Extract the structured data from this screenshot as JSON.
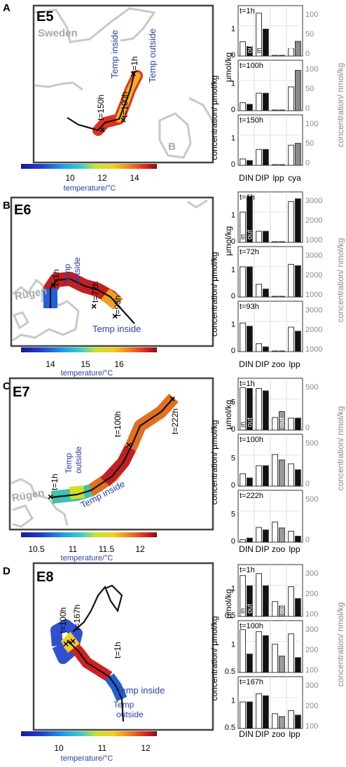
{
  "figure": {
    "panels": [
      {
        "letter": "A",
        "cruise": "E5",
        "map_labels": [
          "Sweden",
          "B"
        ],
        "track_labels": [
          "t=1h",
          "t=100h",
          "t=150h"
        ],
        "legend_labels": [
          "Temp inside",
          "Temp outside"
        ],
        "colorbar": {
          "ticks": [
            "10",
            "12",
            "14"
          ],
          "label": "temperature/°C"
        },
        "bars": {
          "rows": [
            "t=1h",
            "t=100h",
            "t=150h"
          ],
          "categories": [
            "DIN",
            "DIP",
            "lpp",
            "cya"
          ],
          "left_axis_ticks": [
            "0",
            "1"
          ],
          "right_axis_ticks": [
            "0",
            "50",
            "100"
          ],
          "in_out_labels": [
            "in",
            "out",
            "out"
          ],
          "left_axis_label": "concentration/ μmol/kg",
          "right_axis_label": "concentration/ nmol/kg"
        }
      },
      {
        "letter": "B",
        "cruise": "E6",
        "map_labels": [
          "Rügen"
        ],
        "track_labels": [
          "t=1h",
          "t=72h",
          "t=93h"
        ],
        "legend_labels": [
          "Temp outside",
          "Temp inside"
        ],
        "colorbar": {
          "ticks": [
            "14",
            "15",
            "16"
          ],
          "label": "temperature/°C"
        },
        "bars": {
          "rows": [
            "t=1h",
            "t=72h",
            "t=93h"
          ],
          "categories": [
            "DIN",
            "DIP",
            "zoo",
            "lpp"
          ],
          "left_axis_ticks": [
            "0",
            "1"
          ],
          "right_axis_ticks": [
            "1000",
            "2000",
            "3000"
          ],
          "in_out_labels": [
            "in",
            "out",
            "in",
            "out"
          ],
          "left_axis_label": "concentration/ μmol/kg",
          "right_axis_label": "concentration/ nmol/kg"
        }
      },
      {
        "letter": "C",
        "cruise": "E7",
        "map_labels": [
          "Rügen"
        ],
        "track_labels": [
          "t=1h",
          "t=100h",
          "t=222h"
        ],
        "legend_labels": [
          "Temp outside",
          "Temp inside"
        ],
        "colorbar": {
          "ticks": [
            "10.5",
            "11",
            "11.5",
            "12"
          ],
          "label": "temperature/°C"
        },
        "bars": {
          "rows": [
            "t=1h",
            "t=100h",
            "t=222h"
          ],
          "categories": [
            "DIN",
            "DIP",
            "zoo",
            "lpp"
          ],
          "left_axis_ticks": [
            "0",
            "5"
          ],
          "right_axis_ticks": [
            "0",
            "500"
          ],
          "in_out_labels": [
            "in",
            "out",
            "in",
            "out"
          ],
          "left_axis_label": "concentration/ μmol/kg",
          "right_axis_label": "concentration/ nmol/kg"
        }
      },
      {
        "letter": "D",
        "cruise": "E8",
        "map_labels": [],
        "track_labels": [
          "t=100h",
          "t=167h",
          "t=1h"
        ],
        "legend_labels": [
          "Temp inside",
          "Temp outside"
        ],
        "colorbar": {
          "ticks": [
            "10",
            "11",
            "12"
          ],
          "label": "temperature/°C"
        },
        "bars": {
          "rows": [
            "t=1h",
            "t=100h",
            "t=167h"
          ],
          "categories": [
            "DIN",
            "DIP",
            "zoo",
            "lpp"
          ],
          "left_axis_ticks": [
            "0.5",
            "1"
          ],
          "right_axis_ticks": [
            "100",
            "200",
            "300"
          ],
          "in_out_labels": [
            "in",
            "out",
            "in",
            "out"
          ],
          "left_axis_label": "concentration/ μmol/kg",
          "right_axis_label": "concentration/ nmol/kg"
        }
      }
    ]
  },
  "chart_data": [
    {
      "type": "bar",
      "panel": "A",
      "categories": [
        "DIN",
        "DIP",
        "lpp",
        "cya"
      ],
      "left_axis": "DIN, DIP (μmol/kg)",
      "right_axis": "lpp, cya (nmol/kg)",
      "ylim_left": [
        0,
        1.5
      ],
      "ylim_right": [
        0,
        130
      ],
      "rows": [
        {
          "title": "t=1h",
          "in": [
            0.45,
            1.35,
            0.6,
            20
          ],
          "out": [
            0.3,
            0.85,
            0.45,
            40
          ]
        },
        {
          "title": "t=100h",
          "in": [
            0.25,
            0.55,
            0.75,
            65
          ],
          "out": [
            0.2,
            0.55,
            0.5,
            110
          ]
        },
        {
          "title": "t=150h",
          "in": [
            0.2,
            0.5,
            0.45,
            55
          ],
          "out": [
            0.15,
            0.5,
            0.35,
            60
          ]
        }
      ]
    },
    {
      "type": "bar",
      "panel": "B",
      "categories": [
        "DIN",
        "DIP",
        "zoo",
        "lpp"
      ],
      "left_axis": "DIN, DIP (μmol/kg)",
      "right_axis": "zoo, lpp (nmol/kg)",
      "ylim_left": [
        0,
        1.5
      ],
      "ylim_right": [
        0,
        3500
      ],
      "rows": [
        {
          "title": "t=1h",
          "in": [
            0.95,
            0.35,
            0.35,
            3000
          ],
          "out": [
            1.45,
            0.35,
            0.65,
            3200
          ]
        },
        {
          "title": "t=72h",
          "in": [
            0.95,
            0.4,
            0.7,
            2400
          ],
          "out": [
            0.95,
            0.25,
            0.65,
            2300
          ]
        },
        {
          "title": "t=93h",
          "in": [
            0.9,
            0.25,
            0.5,
            1800
          ],
          "out": [
            0.8,
            0.15,
            0.4,
            1500
          ]
        }
      ]
    },
    {
      "type": "bar",
      "panel": "C",
      "categories": [
        "DIN",
        "DIP",
        "zoo",
        "lpp"
      ],
      "left_axis": "DIN, DIP (μmol/kg)",
      "right_axis": "zoo, lpp (nmol/kg)",
      "ylim_left": [
        0,
        6
      ],
      "ylim_right": [
        0,
        900
      ],
      "rows": [
        {
          "title": "t=1h",
          "in": [
            5.2,
            5.1,
            230,
            220
          ],
          "out": [
            5.1,
            4.8,
            340,
            220
          ]
        },
        {
          "title": "t=100h",
          "in": [
            1.5,
            2.5,
            580,
            410
          ],
          "out": [
            1.0,
            2.5,
            480,
            300
          ]
        },
        {
          "title": "t=222h",
          "in": [
            0.3,
            1.8,
            370,
            200
          ],
          "out": [
            0.5,
            1.5,
            260,
            110
          ]
        }
      ]
    },
    {
      "type": "bar",
      "panel": "D",
      "categories": [
        "DIN",
        "DIP",
        "zoo",
        "lpp"
      ],
      "left_axis": "DIN, DIP (μmol/kg)",
      "right_axis": "zoo, lpp (nmol/kg)",
      "ylim_left": [
        0,
        1.2
      ],
      "ylim_right": [
        0,
        330
      ],
      "rows": [
        {
          "title": "t=1h",
          "in": [
            1.0,
            1.05,
            100,
            200
          ],
          "out": [
            0.75,
            0.75,
            70,
            120
          ]
        },
        {
          "title": "t=100h",
          "in": [
            1.05,
            1.0,
            190,
            260
          ],
          "out": [
            0.45,
            0.9,
            110,
            100
          ]
        },
        {
          "title": "t=167h",
          "in": [
            0.65,
            0.85,
            100,
            120
          ],
          "out": [
            0.65,
            0.8,
            80,
            90
          ]
        }
      ]
    }
  ]
}
